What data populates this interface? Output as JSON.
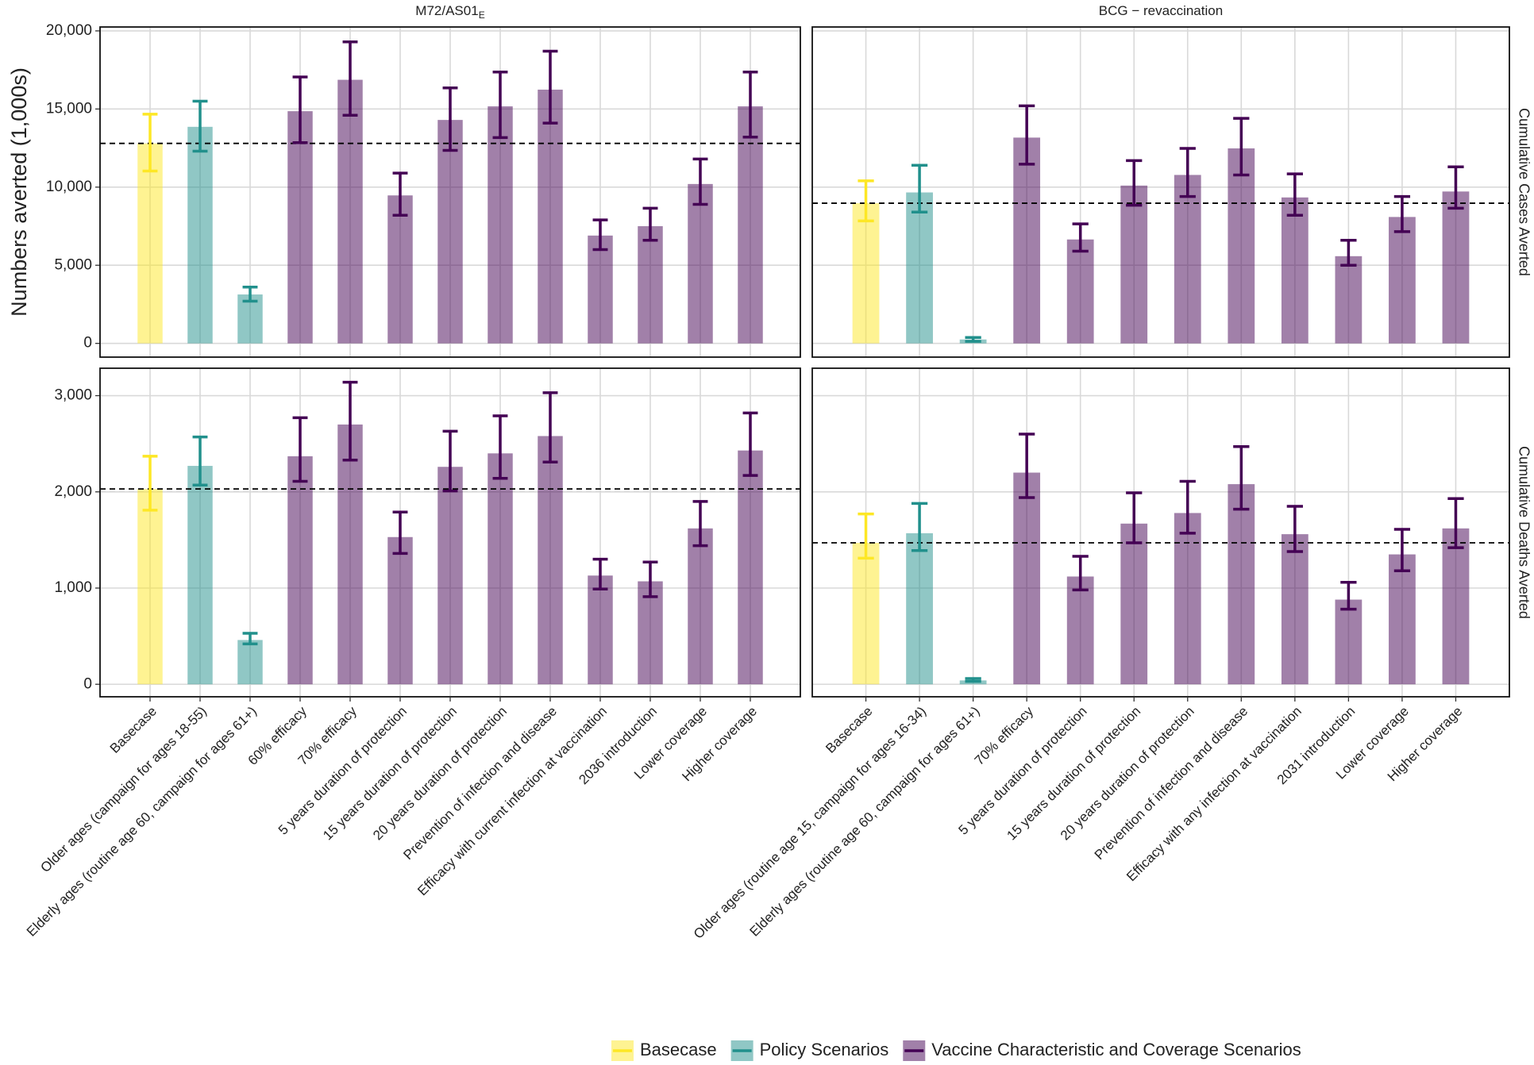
{
  "chart_data": {
    "type": "bar",
    "y_label": "Numbers averted (1,000s)",
    "grid": true,
    "reference_line": true,
    "bar_opacity": 0.5,
    "groups": [
      {
        "name": "Basecase",
        "color": "#FDE725"
      },
      {
        "name": "Policy Scenarios",
        "color": "#21908C"
      },
      {
        "name": "Vaccine Characteristic and Coverage Scenarios",
        "color": "#440154"
      }
    ],
    "columns": [
      {
        "title": "M72/AS01",
        "title_sub": "E",
        "categories": [
          "Basecase",
          "Older ages (campaign for ages 18-55)",
          "Elderly ages (routine age 60, campaign for ages 61+)",
          "60% efficacy",
          "70% efficacy",
          "5 years duration of protection",
          "15 years duration of protection",
          "20 years duration of protection",
          "Prevention of infection and disease",
          "Efficacy with current infection at vaccination",
          "2036 introduction",
          "Lower coverage",
          "Higher coverage"
        ],
        "group": [
          0,
          1,
          1,
          2,
          2,
          2,
          2,
          2,
          2,
          2,
          2,
          2,
          2
        ]
      },
      {
        "title": "BCG − revaccination",
        "categories": [
          "Basecase",
          "Older ages (routine age 15, campaign for ages 16-34)",
          "Elderly ages (routine age 60, campaign for ages 61+)",
          "70% efficacy",
          "5 years duration of protection",
          "15 years duration of protection",
          "20 years duration of protection",
          "Prevention of infection and disease",
          "Efficacy with any infection at vaccination",
          "2031 introduction",
          "Lower coverage",
          "Higher coverage"
        ],
        "group": [
          0,
          1,
          1,
          2,
          2,
          2,
          2,
          2,
          2,
          2,
          2,
          2
        ]
      }
    ],
    "rows": [
      {
        "title": "Cumulative Cases Averted",
        "ylim": [
          -880,
          20250
        ],
        "yticks": [
          0,
          {
            "value": 5000,
            "label": "5,000"
          },
          {
            "value": 10000,
            "label": "10,000"
          },
          {
            "value": 15000,
            "label": "15,000"
          },
          {
            "value": 20000,
            "label": "20,000"
          }
        ]
      },
      {
        "title": "Cumulative Deaths Averted",
        "ylim": [
          -130,
          3285
        ],
        "yticks": [
          0,
          {
            "value": 1000,
            "label": "1,000"
          },
          {
            "value": 2000,
            "label": "2,000"
          },
          {
            "value": 3000,
            "label": "3,000"
          }
        ]
      }
    ],
    "panels": [
      [
        {
          "values": [
            12800,
            13860,
            3130,
            14860,
            16870,
            9470,
            14300,
            15170,
            16240,
            6900,
            7500,
            10200,
            15170
          ],
          "lower": [
            11030,
            12300,
            2700,
            12850,
            14600,
            8200,
            12350,
            13170,
            14100,
            6000,
            6600,
            8900,
            13200
          ],
          "upper": [
            14670,
            15500,
            3600,
            17050,
            19300,
            10900,
            16350,
            17370,
            18700,
            7900,
            8650,
            11800,
            17370
          ]
        },
        {
          "values": [
            8970,
            9660,
            250,
            13170,
            6650,
            10100,
            10780,
            12480,
            9340,
            5580,
            8090,
            9720
          ],
          "lower": [
            7840,
            8400,
            130,
            11470,
            5900,
            8840,
            9400,
            10780,
            8200,
            5000,
            7150,
            8650
          ],
          "upper": [
            10400,
            11400,
            380,
            15200,
            7650,
            11700,
            12480,
            14400,
            10850,
            6600,
            9400,
            11300
          ]
        }
      ],
      [
        {
          "values": [
            2030,
            2270,
            460,
            2370,
            2700,
            1530,
            2260,
            2400,
            2580,
            1130,
            1070,
            1620,
            2430
          ],
          "lower": [
            1810,
            2070,
            420,
            2110,
            2330,
            1360,
            2010,
            2140,
            2310,
            990,
            910,
            1440,
            2170
          ],
          "upper": [
            2370,
            2570,
            530,
            2770,
            3140,
            1790,
            2630,
            2790,
            3030,
            1300,
            1270,
            1900,
            2820
          ]
        },
        {
          "values": [
            1470,
            1570,
            40,
            2200,
            1120,
            1670,
            1780,
            2080,
            1560,
            880,
            1350,
            1620
          ],
          "lower": [
            1310,
            1390,
            30,
            1940,
            980,
            1470,
            1570,
            1820,
            1380,
            780,
            1180,
            1420
          ],
          "upper": [
            1770,
            1880,
            60,
            2600,
            1330,
            1990,
            2110,
            2470,
            1850,
            1060,
            1610,
            1930
          ]
        }
      ]
    ]
  }
}
